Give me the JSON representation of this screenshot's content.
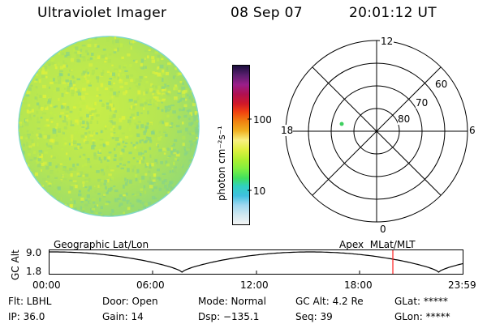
{
  "header": {
    "instrument": "Ultraviolet Imager",
    "date": "08 Sep 07",
    "time": "20:01:12 UT"
  },
  "colorbar": {
    "unit_label": "photon cm⁻²s⁻¹",
    "tick_100": "100",
    "tick_10": "10",
    "colors": [
      "#1a0e3c",
      "#5a1e6e",
      "#9a1e8a",
      "#b01050",
      "#d01828",
      "#f04010",
      "#f08010",
      "#f0b020",
      "#f8f080",
      "#e0f040",
      "#b0f030",
      "#80f040",
      "#40e060",
      "#30d0c0",
      "#40c0e0",
      "#a0d8f0",
      "#d0e8f0",
      "#f4f4f4"
    ]
  },
  "polar": {
    "mlt_labels": {
      "top": "12",
      "right": "6",
      "bottom": "0",
      "left": "18"
    },
    "lat_labels": [
      "60",
      "70",
      "80"
    ]
  },
  "image_disk": {
    "base_color": "#b8e84a"
  },
  "altitude_panel": {
    "left_title": "Geographic Lat/Lon",
    "right_title": "Apex  MLat/MLT",
    "y_axis_label": "GC Alt",
    "y_top": "9.0",
    "y_bottom": "1.8",
    "x_ticks": [
      "00:00",
      "06:00",
      "12:00",
      "18:00",
      "23:59"
    ],
    "cursor_color": "#ff2020"
  },
  "info": {
    "filter": "Flt: LBHL",
    "door": "Door: Open",
    "mode": "Mode: Normal",
    "gc_alt": "GC Alt: 4.2 Re",
    "glat": "GLat: *****",
    "ip": "IP: 36.0",
    "gain": "Gain: 14",
    "dsp": "Dsp: −135.1",
    "seq": "Seq: 39",
    "glon": "GLon: *****"
  }
}
